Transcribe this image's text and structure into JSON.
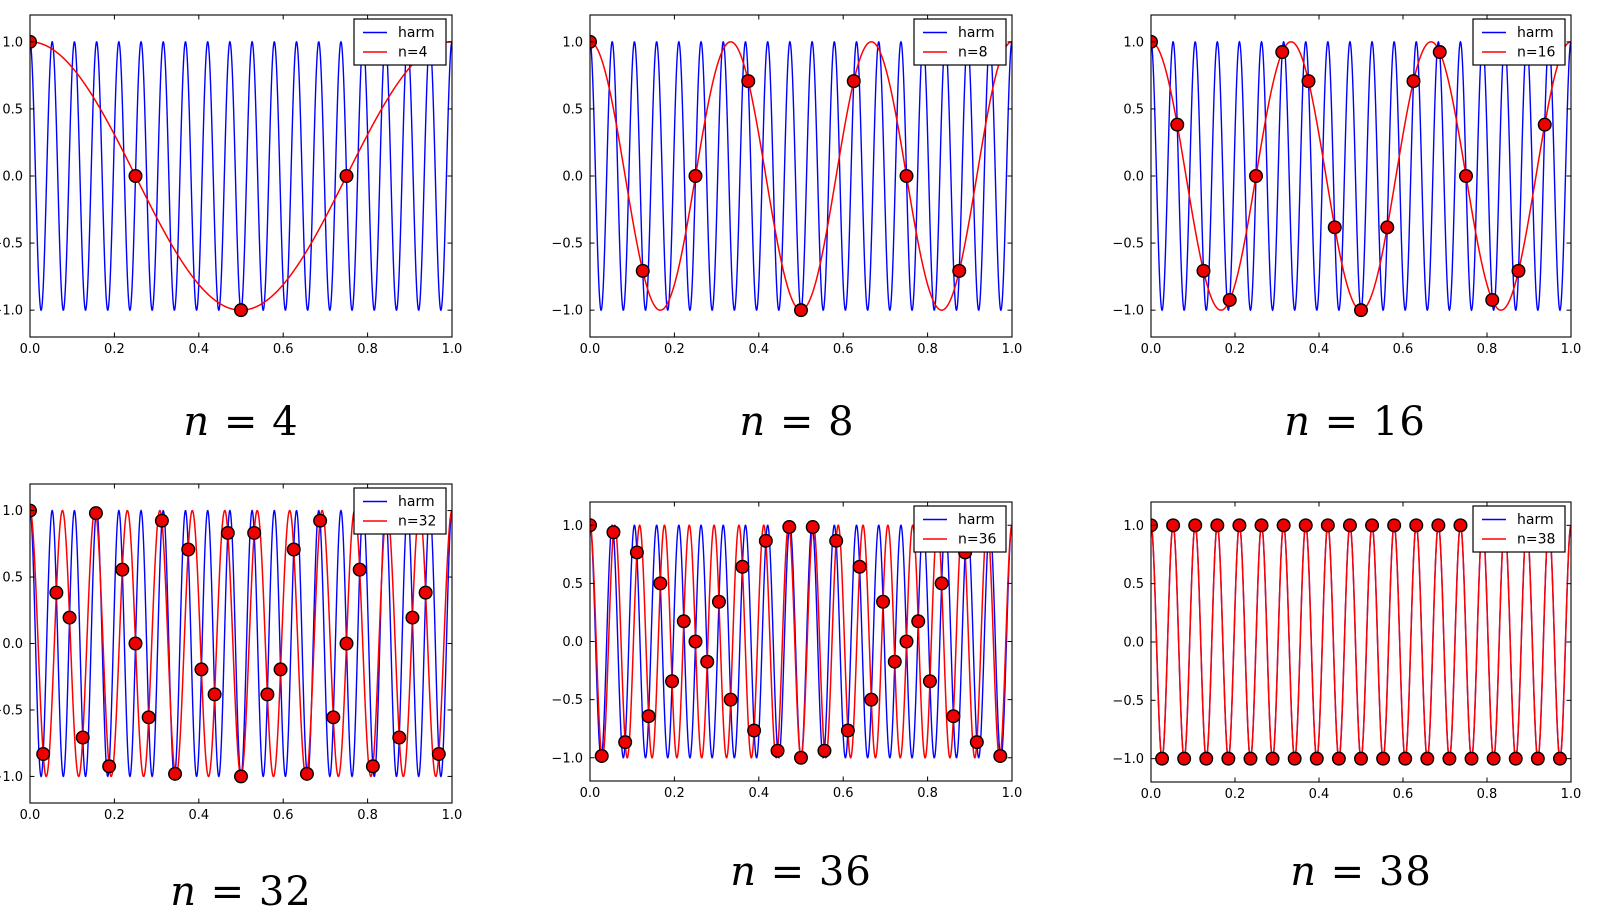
{
  "figure": {
    "background": "#ffffff",
    "rows": 2,
    "cols": 3
  },
  "chart_data": {
    "type": "line",
    "title": "",
    "xlabel": "",
    "ylabel": "",
    "grid": false,
    "legend_position": "upper right",
    "xlim": [
      0,
      1
    ],
    "ylim": [
      -1.2,
      1.2
    ],
    "x_ticks": [
      0.0,
      0.2,
      0.4,
      0.6,
      0.8,
      1.0
    ],
    "x_tick_labels": [
      "0.0",
      "0.2",
      "0.4",
      "0.6",
      "0.8",
      "1.0"
    ],
    "y_ticks": [
      1.0,
      0.5,
      0.0,
      -0.5,
      -1.0
    ],
    "y_tick_labels": [
      "1.0",
      "0.5",
      "0.0",
      "−0.5",
      "−1.0"
    ],
    "harmonic": {
      "label": "harm",
      "function": "y = cos(2π f t)",
      "frequency": 19,
      "amplitude": 1,
      "color": "#0000ff"
    },
    "alias": {
      "function": "y = cos(2π f_alias t)",
      "color": "#ff0000"
    },
    "samples_rule": "t_k = k/n, y_k = cos(2π·19·t_k), k = 0 … n−1",
    "marker": {
      "shape": "circle",
      "fill": "#ee0000",
      "edge": "#000000",
      "radius": 6.3
    },
    "panels": [
      {
        "id": "n4",
        "caption": "n = 4",
        "n": 4,
        "alias_frequency": 1,
        "legend": [
          "harm",
          "n=4"
        ],
        "sample_points": [
          [
            0.0,
            1.0
          ],
          [
            0.25,
            0.0
          ],
          [
            0.5,
            -1.0
          ],
          [
            0.75,
            0.0
          ]
        ]
      },
      {
        "id": "n8",
        "caption": "n = 8",
        "n": 8,
        "alias_frequency": 3,
        "legend": [
          "harm",
          "n=8"
        ],
        "sample_points": [
          [
            0.0,
            1.0
          ],
          [
            0.125,
            -0.7071
          ],
          [
            0.25,
            0.0
          ],
          [
            0.375,
            0.7071
          ],
          [
            0.5,
            -1.0
          ],
          [
            0.625,
            0.7071
          ],
          [
            0.75,
            0.0
          ],
          [
            0.875,
            -0.7071
          ]
        ]
      },
      {
        "id": "n16",
        "caption": "n = 16",
        "n": 16,
        "alias_frequency": 3,
        "legend": [
          "harm",
          "n=16"
        ],
        "sample_points": [
          [
            0.0,
            1.0
          ],
          [
            0.0625,
            0.3827
          ],
          [
            0.125,
            -0.7071
          ],
          [
            0.1875,
            -0.9239
          ],
          [
            0.25,
            0.0
          ],
          [
            0.3125,
            0.9239
          ],
          [
            0.375,
            0.7071
          ],
          [
            0.4375,
            -0.3827
          ],
          [
            0.5,
            -1.0
          ],
          [
            0.5625,
            -0.3827
          ],
          [
            0.625,
            0.7071
          ],
          [
            0.6875,
            0.9239
          ],
          [
            0.75,
            0.0
          ],
          [
            0.8125,
            -0.9239
          ],
          [
            0.875,
            -0.7071
          ],
          [
            0.9375,
            0.3827
          ]
        ]
      },
      {
        "id": "n32",
        "caption": "n = 32",
        "n": 32,
        "alias_frequency": 13,
        "legend": [
          "harm",
          "n=32"
        ]
      },
      {
        "id": "n36",
        "caption": "n = 36",
        "n": 36,
        "alias_frequency": 17,
        "legend": [
          "harm",
          "n=36"
        ]
      },
      {
        "id": "n38",
        "caption": "n = 38",
        "n": 38,
        "alias_frequency": 19,
        "legend": [
          "harm",
          "n=38"
        ]
      }
    ]
  }
}
